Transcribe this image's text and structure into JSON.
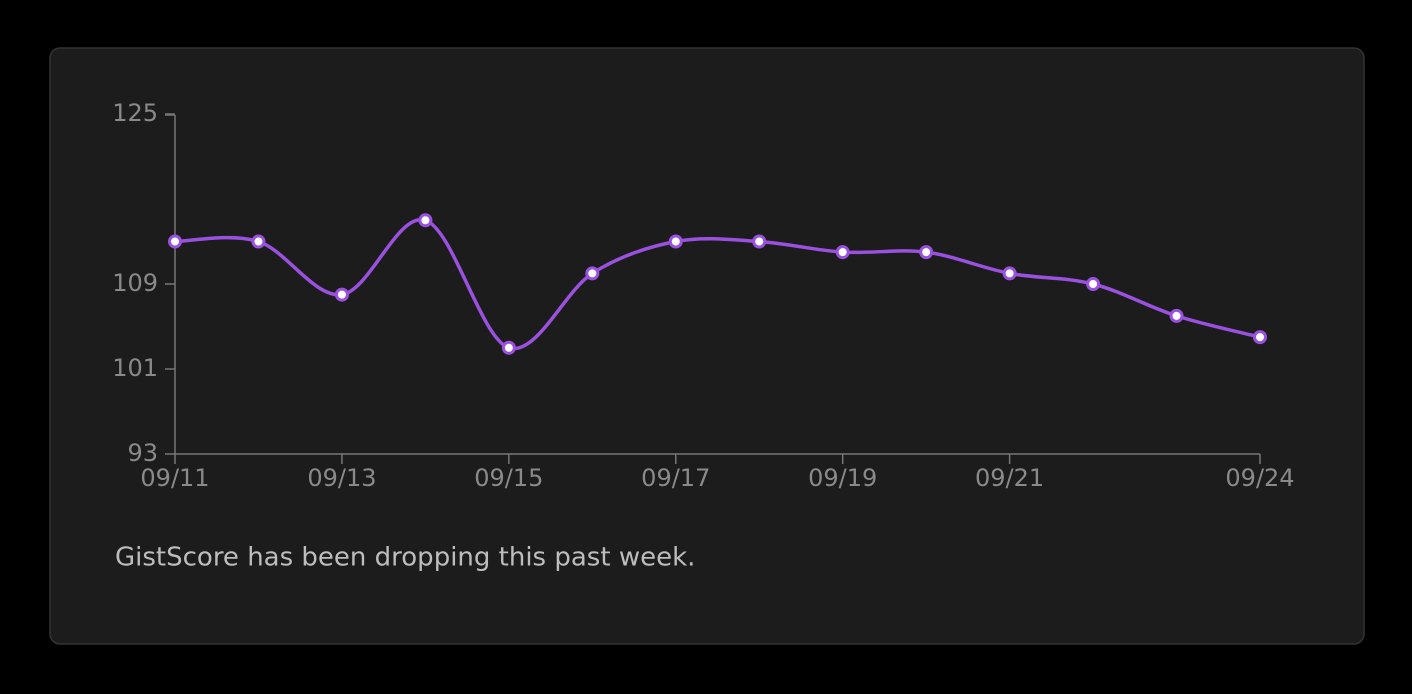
{
  "chart_data": {
    "type": "line",
    "categories": [
      "09/11",
      null,
      "09/13",
      null,
      "09/15",
      null,
      "09/17",
      null,
      "09/19",
      null,
      "09/21",
      null,
      null,
      "09/24"
    ],
    "series": [
      {
        "color": "#9b51e0",
        "values": [
          113,
          113,
          108,
          115,
          103,
          110,
          113,
          113,
          112,
          112,
          110,
          109,
          106,
          104
        ]
      }
    ],
    "ylim": [
      93,
      125
    ],
    "yticks": [
      93,
      101,
      109,
      125
    ],
    "caption": "GistScore has been dropping this past week."
  }
}
